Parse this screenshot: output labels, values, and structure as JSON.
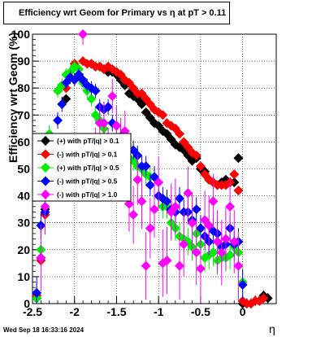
{
  "title": "Efficiency wrt Geom for Primary vs    η  at pT > 0.11",
  "footer": "Wed Sep 18 16:33:16 2024",
  "chart_data": {
    "type": "scatter",
    "title": "Efficiency wrt Geom for Primary vs    η  at pT > 0.11",
    "xlabel": "η",
    "ylabel": "Efficiency wrt Geom (%)",
    "xlim": [
      -2.5,
      0.4
    ],
    "ylim": [
      0,
      100
    ],
    "xticks": [
      "-2.5",
      "-2",
      "-1.5",
      "-1",
      "-0.5",
      "0"
    ],
    "yticks": [
      "0",
      "10",
      "20",
      "30",
      "40",
      "50",
      "60",
      "70",
      "80",
      "90",
      "100"
    ],
    "grid": true,
    "legend_position": "middle-left",
    "series": [
      {
        "name": "(+) with pT/|q| > 0.1",
        "color": "#000000",
        "x": [
          -2.45,
          -2.4,
          -2.35,
          -2.1,
          -1.95,
          -1.8,
          -1.75,
          -1.7,
          -1.65,
          -1.6,
          -1.55,
          -1.5,
          -1.45,
          -1.4,
          -1.35,
          -1.3,
          -1.25,
          -1.2,
          -1.15,
          -1.1,
          -1.05,
          -1.0,
          -0.95,
          -0.9,
          -0.85,
          -0.8,
          -0.75,
          -0.7,
          -0.65,
          -0.6,
          -0.55,
          -0.5,
          -0.45,
          -0.4,
          -0.35,
          -0.3,
          -0.25,
          -0.2,
          -0.15,
          -0.1,
          -0.05,
          0.0,
          0.05,
          0.1,
          0.15,
          0.2,
          0.25,
          0.3
        ],
        "y": [
          2,
          17,
          35,
          76,
          85,
          89,
          88,
          88,
          87,
          86,
          86,
          85,
          83,
          81,
          78,
          77,
          76,
          74,
          71,
          69,
          67,
          66,
          64,
          63,
          61,
          59,
          58,
          57,
          55,
          53,
          54,
          50,
          49,
          46,
          45,
          44,
          45,
          46,
          45,
          45,
          54,
          0,
          0,
          0,
          1,
          1,
          3,
          2
        ]
      },
      {
        "name": "(-) with pT/|q| > 0.1",
        "color": "#ff0000",
        "x": [
          -2.45,
          -2.4,
          -2.35,
          -2.1,
          -2.0,
          -1.9,
          -1.85,
          -1.8,
          -1.75,
          -1.7,
          -1.65,
          -1.6,
          -1.55,
          -1.5,
          -1.45,
          -1.4,
          -1.35,
          -1.3,
          -1.25,
          -1.2,
          -1.15,
          -1.1,
          -1.05,
          -1.0,
          -0.95,
          -0.9,
          -0.85,
          -0.8,
          -0.75,
          -0.7,
          -0.65,
          -0.6,
          -0.55,
          -0.5,
          -0.45,
          -0.4,
          -0.35,
          -0.3,
          -0.25,
          -0.2,
          -0.15,
          -0.1,
          -0.05,
          0.0,
          0.05,
          0.1,
          0.15,
          0.2,
          0.25
        ],
        "y": [
          3,
          16,
          33,
          80,
          89,
          90,
          89,
          89,
          88,
          88,
          87,
          88,
          87,
          86,
          85,
          83,
          82,
          80,
          78,
          78,
          76,
          74,
          72,
          71,
          70,
          67,
          66,
          65,
          63,
          60,
          58,
          56,
          55,
          51,
          48,
          46,
          45,
          44,
          44,
          44,
          45,
          48,
          42,
          1,
          0,
          0,
          1,
          1,
          2
        ]
      },
      {
        "name": "(+) with pT/|q| > 0.5",
        "color": "#00ee00",
        "x": [
          -2.45,
          -2.4,
          -2.3,
          -2.2,
          -2.15,
          -2.1,
          -2.05,
          -2.0,
          -1.95,
          -1.9,
          -1.85,
          -1.8,
          -1.75,
          -1.7,
          -1.65,
          -1.6,
          -1.55,
          -1.5,
          -1.45,
          -1.4,
          -1.35,
          -1.3,
          -1.25,
          -1.2,
          -1.15,
          -1.1,
          -1.05,
          -1.0,
          -0.95,
          -0.9,
          -0.85,
          -0.8,
          -0.75,
          -0.7,
          -0.65,
          -0.6,
          -0.55,
          -0.5,
          -0.45,
          -0.4,
          -0.35,
          -0.3,
          -0.25,
          -0.2,
          -0.15,
          -0.1,
          -0.05,
          0.0
        ],
        "y": [
          2,
          20,
          63,
          79,
          81,
          85,
          86,
          88,
          87,
          82,
          79,
          76,
          70,
          68,
          65,
          61,
          58,
          56,
          56,
          55,
          54,
          53,
          51,
          50,
          48,
          47,
          47,
          40,
          36,
          36,
          30,
          28,
          25,
          24,
          23,
          21,
          26,
          22,
          17,
          18,
          19,
          16,
          17,
          17,
          18,
          21,
          19,
          8
        ]
      },
      {
        "name": "(-) with pT/|q| > 0.5",
        "color": "#0000ff",
        "x": [
          -2.45,
          -2.4,
          -2.35,
          -2.2,
          -2.15,
          -2.1,
          -2.05,
          -2.0,
          -1.95,
          -1.9,
          -1.85,
          -1.8,
          -1.75,
          -1.7,
          -1.65,
          -1.6,
          -1.55,
          -1.5,
          -1.45,
          -1.4,
          -1.35,
          -1.3,
          -1.25,
          -1.2,
          -1.15,
          -1.1,
          -1.05,
          -1.0,
          -0.95,
          -0.9,
          -0.85,
          -0.8,
          -0.75,
          -0.7,
          -0.65,
          -0.6,
          -0.55,
          -0.5,
          -0.45,
          -0.4,
          -0.35,
          -0.3,
          -0.25,
          -0.2,
          -0.15,
          -0.1,
          -0.05,
          0.0
        ],
        "y": [
          4,
          29,
          34,
          68,
          74,
          82,
          84,
          83,
          85,
          83,
          81,
          80,
          79,
          73,
          72,
          73,
          67,
          66,
          62,
          60,
          57,
          57,
          55,
          51,
          51,
          44,
          47,
          40,
          39,
          38,
          35,
          34,
          39,
          34,
          34,
          31,
          35,
          28,
          25,
          23,
          27,
          26,
          21,
          22,
          28,
          22,
          23,
          7
        ]
      },
      {
        "name": "(-) with pT/|q| > 1.0",
        "color": "#ff00ff",
        "x": [
          -2.4,
          -2.35,
          -1.9,
          -1.75,
          -1.7,
          -1.65,
          -1.6,
          -1.55,
          -1.5,
          -1.45,
          -1.4,
          -1.35,
          -1.3,
          -1.25,
          -1.2,
          -1.15,
          -1.1,
          -1.05,
          -1.0,
          -0.95,
          -0.9,
          -0.85,
          -0.8,
          -0.75,
          -0.7,
          -0.65,
          -0.6,
          -0.55,
          -0.5,
          -0.45,
          -0.4,
          -0.35,
          -0.3,
          -0.25,
          -0.2,
          -0.15,
          -0.1,
          -0.05
        ],
        "y": [
          17,
          36,
          100,
          57,
          67,
          67,
          57,
          77,
          66,
          61,
          64,
          37,
          33,
          46,
          38,
          14,
          28,
          35,
          45,
          15,
          16,
          34,
          36,
          14,
          22,
          41,
          30,
          19,
          13,
          31,
          29,
          38,
          23,
          19,
          24,
          36,
          23,
          14
        ]
      }
    ]
  }
}
